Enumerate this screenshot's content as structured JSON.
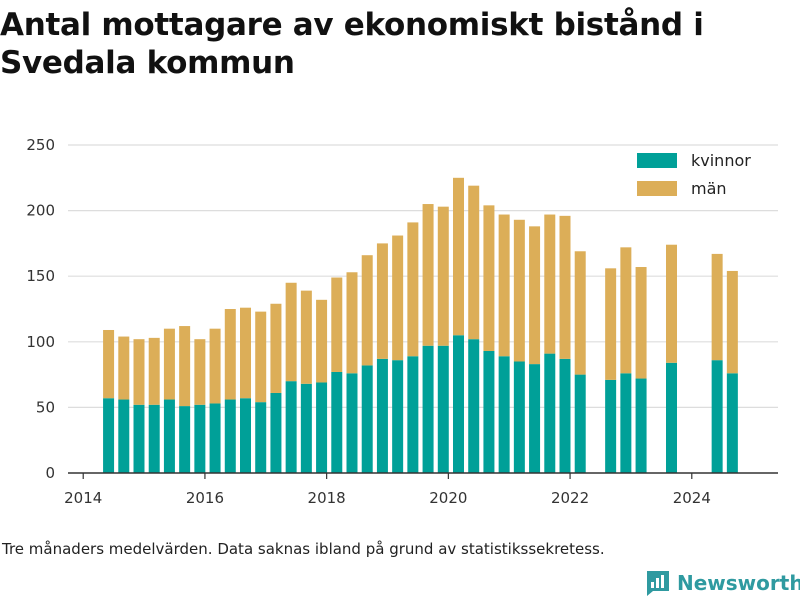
{
  "title": "Antal mottagare av ekonomiskt bistånd i Svedala kommun",
  "note": "Tre månaders medelvärden. Data saknas ibland på grund av statistikssekretess.",
  "logo": {
    "text": "Newsworthy",
    "icon": "bar-chart-logo-icon"
  },
  "colors": {
    "kvinnor": "#00a098",
    "man": "#dcae58",
    "grid": "#dddddd",
    "axis": "#333333"
  },
  "chart_data": {
    "type": "bar",
    "stacked": true,
    "x_unit": "date",
    "x_ticks": [
      "2014",
      "2016",
      "2018",
      "2020",
      "2022",
      "2024"
    ],
    "xlim": [
      "2013-10",
      "2025-06"
    ],
    "ylim": [
      0,
      250
    ],
    "y_ticks": [
      "0",
      "50",
      "100",
      "150",
      "200",
      "250"
    ],
    "grid": true,
    "legend_position": "top-right",
    "series": [
      {
        "name": "kvinnor",
        "color": "#00a098",
        "points": [
          [
            "2014-06",
            57
          ],
          [
            "2014-09",
            56
          ],
          [
            "2014-12",
            52
          ],
          [
            "2015-03",
            52
          ],
          [
            "2015-06",
            56
          ],
          [
            "2015-09",
            51
          ],
          [
            "2015-12",
            52
          ],
          [
            "2016-03",
            53
          ],
          [
            "2016-06",
            56
          ],
          [
            "2016-09",
            57
          ],
          [
            "2016-12",
            54
          ],
          [
            "2017-03",
            61
          ],
          [
            "2017-06",
            70
          ],
          [
            "2017-09",
            68
          ],
          [
            "2017-12",
            69
          ],
          [
            "2018-03",
            77
          ],
          [
            "2018-06",
            76
          ],
          [
            "2018-09",
            82
          ],
          [
            "2018-12",
            87
          ],
          [
            "2019-03",
            86
          ],
          [
            "2019-06",
            89
          ],
          [
            "2019-09",
            97
          ],
          [
            "2019-12",
            97
          ],
          [
            "2020-03",
            105
          ],
          [
            "2020-06",
            102
          ],
          [
            "2020-09",
            93
          ],
          [
            "2020-12",
            89
          ],
          [
            "2021-03",
            85
          ],
          [
            "2021-06",
            83
          ],
          [
            "2021-09",
            91
          ],
          [
            "2021-12",
            87
          ],
          [
            "2022-03",
            75
          ],
          [
            "2022-09",
            71
          ],
          [
            "2022-12",
            76
          ],
          [
            "2023-03",
            72
          ],
          [
            "2023-09",
            84
          ],
          [
            "2024-06",
            86
          ],
          [
            "2024-09",
            76
          ]
        ]
      },
      {
        "name": "män",
        "color": "#dcae58",
        "points": [
          [
            "2014-06",
            52
          ],
          [
            "2014-09",
            48
          ],
          [
            "2014-12",
            50
          ],
          [
            "2015-03",
            51
          ],
          [
            "2015-06",
            54
          ],
          [
            "2015-09",
            61
          ],
          [
            "2015-12",
            50
          ],
          [
            "2016-03",
            57
          ],
          [
            "2016-06",
            69
          ],
          [
            "2016-09",
            69
          ],
          [
            "2016-12",
            69
          ],
          [
            "2017-03",
            68
          ],
          [
            "2017-06",
            75
          ],
          [
            "2017-09",
            71
          ],
          [
            "2017-12",
            63
          ],
          [
            "2018-03",
            72
          ],
          [
            "2018-06",
            77
          ],
          [
            "2018-09",
            84
          ],
          [
            "2018-12",
            88
          ],
          [
            "2019-03",
            95
          ],
          [
            "2019-06",
            102
          ],
          [
            "2019-09",
            108
          ],
          [
            "2019-12",
            106
          ],
          [
            "2020-03",
            120
          ],
          [
            "2020-06",
            117
          ],
          [
            "2020-09",
            111
          ],
          [
            "2020-12",
            108
          ],
          [
            "2021-03",
            108
          ],
          [
            "2021-06",
            105
          ],
          [
            "2021-09",
            106
          ],
          [
            "2021-12",
            109
          ],
          [
            "2022-03",
            94
          ],
          [
            "2022-09",
            85
          ],
          [
            "2022-12",
            96
          ],
          [
            "2023-03",
            85
          ],
          [
            "2023-09",
            90
          ],
          [
            "2024-06",
            81
          ],
          [
            "2024-09",
            78
          ]
        ]
      }
    ]
  }
}
